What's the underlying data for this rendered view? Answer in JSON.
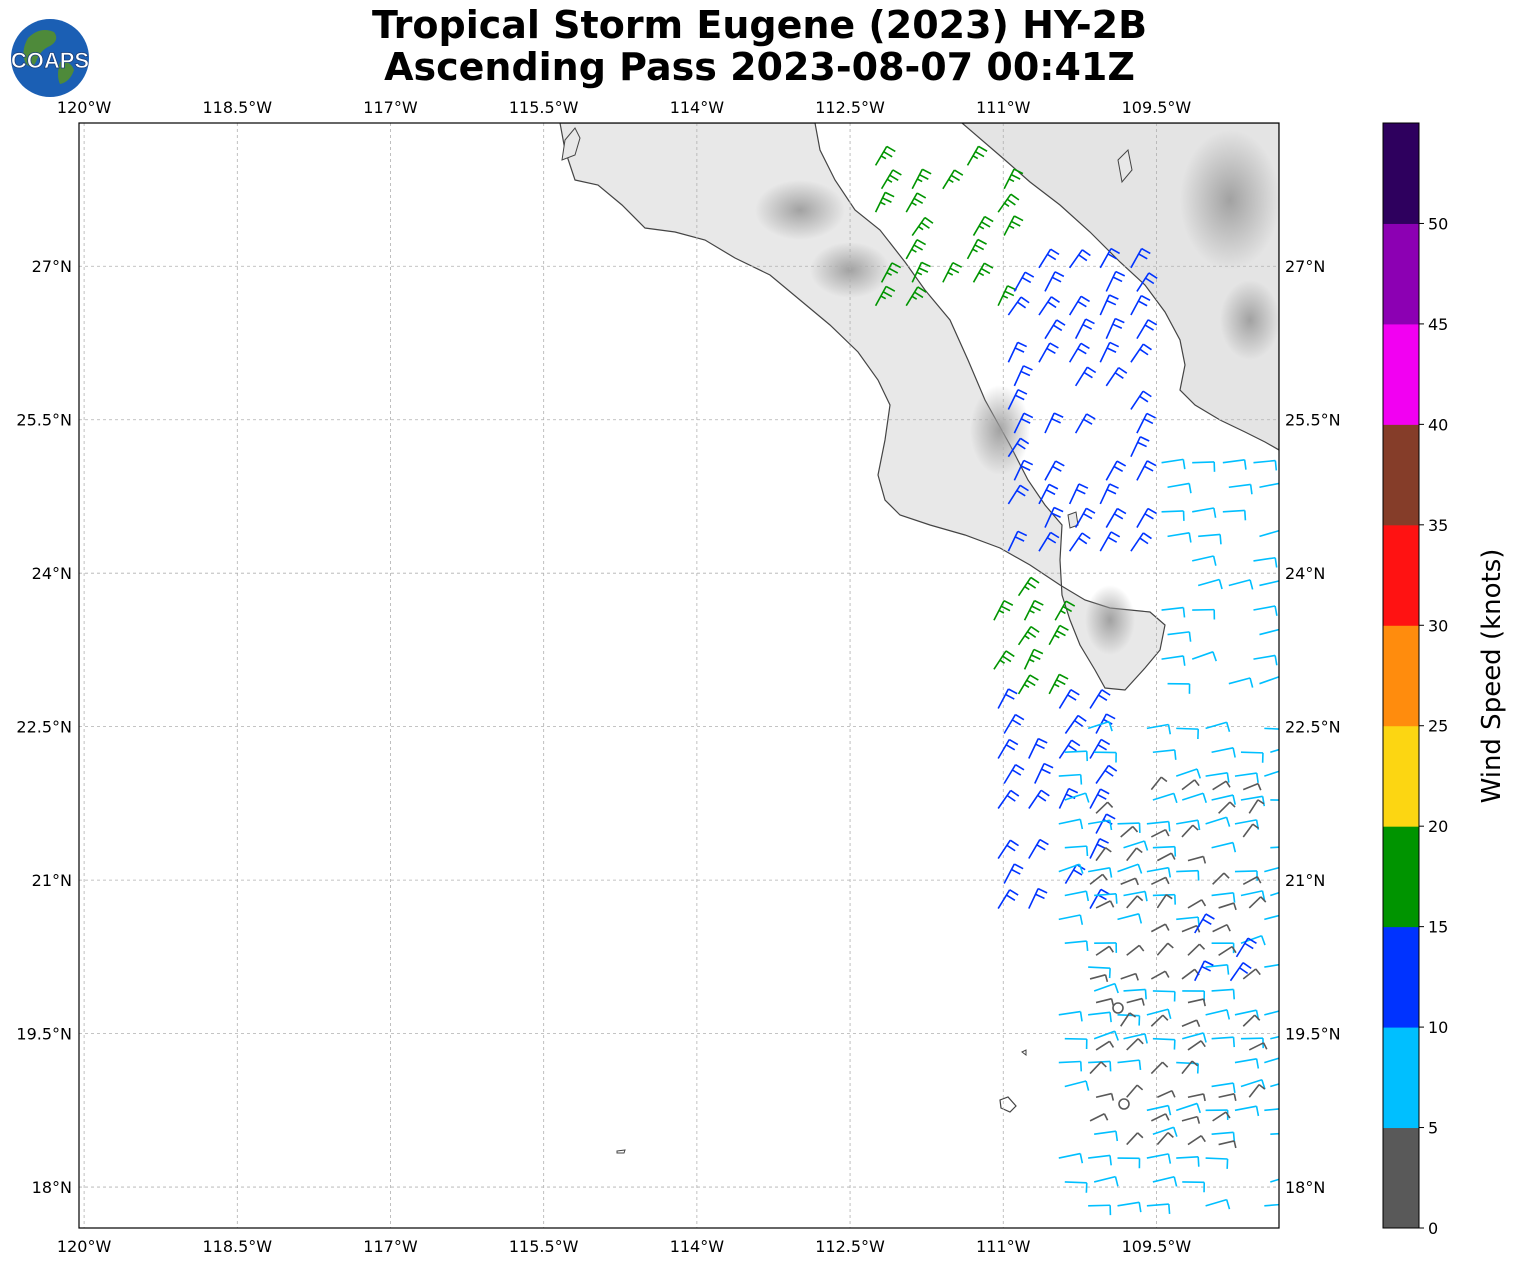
{
  "title": {
    "line1": "Tropical Storm Eugene (2023) HY-2B",
    "line2": "Ascending Pass 2023-08-07 00:41Z"
  },
  "logo": {
    "text": "COAPS",
    "icon": "globe-icon"
  },
  "map": {
    "lon_range": [
      -120.05,
      -108.3
    ],
    "lat_range": [
      17.6,
      28.4
    ],
    "lon_ticks": [
      "120°W",
      "118.5°W",
      "117°W",
      "115.5°W",
      "114°W",
      "112.5°W",
      "111°W",
      "109.5°W"
    ],
    "lon_tick_values": [
      -120,
      -118.5,
      -117,
      -115.5,
      -114,
      -112.5,
      -111,
      -109.5
    ],
    "lat_ticks": [
      "18°N",
      "19.5°N",
      "21°N",
      "22.5°N",
      "24°N",
      "25.5°N",
      "27°N"
    ],
    "lat_tick_values": [
      18,
      19.5,
      21,
      22.5,
      24,
      25.5,
      27
    ],
    "gridlines": true,
    "coastline_color": "#444444"
  },
  "colorbar": {
    "label": "Wind Speed (knots)",
    "tick_labels": [
      "0",
      "5",
      "10",
      "15",
      "20",
      "25",
      "30",
      "35",
      "40",
      "45",
      "50"
    ],
    "bins": [
      {
        "min": 0,
        "max": 5,
        "color": "#595959"
      },
      {
        "min": 5,
        "max": 10,
        "color": "#00bfff"
      },
      {
        "min": 10,
        "max": 15,
        "color": "#0033ff"
      },
      {
        "min": 15,
        "max": 20,
        "color": "#009400"
      },
      {
        "min": 20,
        "max": 25,
        "color": "#fcd612"
      },
      {
        "min": 25,
        "max": 30,
        "color": "#ff8c0d"
      },
      {
        "min": 30,
        "max": 35,
        "color": "#ff1212"
      },
      {
        "min": 35,
        "max": 40,
        "color": "#853d29"
      },
      {
        "min": 40,
        "max": 45,
        "color": "#f200f2"
      },
      {
        "min": 45,
        "max": 50,
        "color": "#8c00b3"
      },
      {
        "min": 50,
        "max": 55,
        "color": "#2e005e"
      }
    ]
  },
  "wind_groups": [
    {
      "name": "gulf-north",
      "color_bin": 3,
      "lon": [
        -112.4,
        -110.9
      ],
      "lat": [
        26.5,
        28.1
      ]
    },
    {
      "name": "gulf-central",
      "color_bin": 2,
      "lon": [
        -111.1,
        -109.6
      ],
      "lat": [
        24.1,
        27.1
      ]
    },
    {
      "name": "gulf-east-light",
      "color_bin": 1,
      "lon": [
        -109.6,
        -108.4
      ],
      "lat": [
        22.8,
        25.2
      ]
    },
    {
      "name": "west-of-cape-moderate",
      "color_bin": 3,
      "lon": [
        -111.3,
        -110.4
      ],
      "lat": [
        22.7,
        23.9
      ]
    },
    {
      "name": "west-of-cape-fresh",
      "color_bin": 2,
      "lon": [
        -111.2,
        -110.0
      ],
      "lat": [
        20.6,
        22.8
      ]
    },
    {
      "name": "south-light",
      "color_bin": 1,
      "lon": [
        -110.6,
        -108.3
      ],
      "lat": [
        17.7,
        22.6
      ]
    },
    {
      "name": "center-calm",
      "color_bin": 0,
      "lon": [
        -110.3,
        -108.5
      ],
      "lat": [
        18.3,
        22.0
      ]
    },
    {
      "name": "south-fresh",
      "color_bin": 2,
      "lon": [
        -109.3,
        -108.6
      ],
      "lat": [
        19.9,
        20.6
      ]
    }
  ],
  "land": [
    {
      "name": "baja-california",
      "shade": "#dcdcdc"
    },
    {
      "name": "mainland-mexico",
      "shade": "#d0d0d0"
    }
  ]
}
